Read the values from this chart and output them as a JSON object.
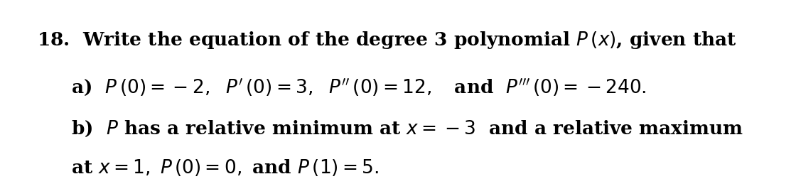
{
  "background_color": "#ffffff",
  "fig_width": 11.2,
  "fig_height": 2.52,
  "dpi": 100,
  "fontsize": 19,
  "color": "#000000"
}
